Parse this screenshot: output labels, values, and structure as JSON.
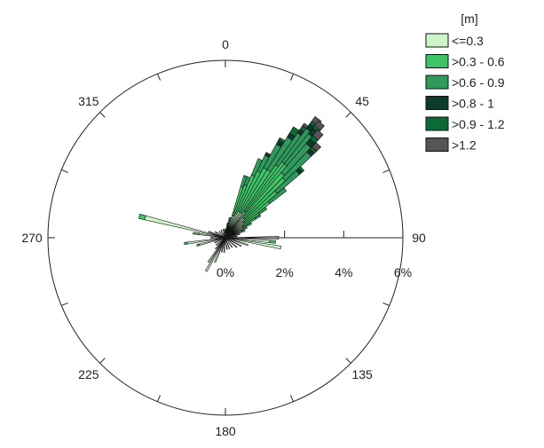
{
  "chart_data": {
    "type": "polar-bar",
    "title": "",
    "direction_labels": [
      "0",
      "45",
      "90",
      "135",
      "180",
      "225",
      "270",
      "315"
    ],
    "radial_tick_labels": [
      "0%",
      "2%",
      "4%",
      "6%"
    ],
    "radial_ticks": [
      0,
      2,
      4,
      6
    ],
    "radial_max": 6,
    "bin_width_deg": 3,
    "legend": {
      "title": "[m]",
      "placement": "top-right",
      "items": [
        {
          "label": "<=0.3",
          "color": "#ccf5c8"
        },
        {
          "label": ">0.3 - 0.6",
          "color": "#3dc466"
        },
        {
          "label": ">0.6 - 0.9",
          "color": "#2f9a5c"
        },
        {
          "label": ">0.8 - 1",
          "color": "#0c3a2c"
        },
        {
          "label": ">0.9 - 1.2",
          "color": "#0b6b36"
        },
        {
          "label": ">1.2",
          "color": "#555555"
        }
      ]
    },
    "series": [
      {
        "dir": 3,
        "values": [
          0.3
        ]
      },
      {
        "dir": 8,
        "values": [
          0.4,
          0.1
        ]
      },
      {
        "dir": 12,
        "values": [
          0.5,
          0.2
        ]
      },
      {
        "dir": 15,
        "values": [
          0.4,
          0.2,
          0.1
        ]
      },
      {
        "dir": 18,
        "values": [
          0.8,
          1.0,
          0.4
        ]
      },
      {
        "dir": 21,
        "values": [
          0.8,
          1.1,
          0.3
        ]
      },
      {
        "dir": 24,
        "values": [
          0.9,
          1.4,
          0.6
        ]
      },
      {
        "dir": 27,
        "values": [
          1.0,
          1.5,
          0.6,
          0.1
        ]
      },
      {
        "dir": 30,
        "values": [
          1.0,
          1.7,
          0.9,
          0.15,
          0.1
        ]
      },
      {
        "dir": 33,
        "values": [
          1.0,
          1.7,
          1.3,
          0.15,
          0.25
        ]
      },
      {
        "dir": 36,
        "values": [
          1.1,
          1.9,
          1.3,
          0.15,
          0.15,
          0.1
        ]
      },
      {
        "dir": 38,
        "values": [
          1.1,
          2.1,
          1.4,
          0.2,
          0.1,
          0.2
        ]
      },
      {
        "dir": 40,
        "values": [
          1.0,
          2.2,
          1.3,
          0.25,
          0.1,
          0.2
        ]
      },
      {
        "dir": 42,
        "values": [
          0.9,
          2.0,
          1.3,
          0.2,
          0.15,
          0.25
        ]
      },
      {
        "dir": 45,
        "values": [
          0.9,
          1.9,
          1.2,
          0.15,
          0.1,
          0.2
        ]
      },
      {
        "dir": 48,
        "values": [
          0.8,
          1.5,
          1.0,
          0.1,
          0.1
        ]
      },
      {
        "dir": 51,
        "values": [
          0.8,
          1.1,
          0.7
        ]
      },
      {
        "dir": 54,
        "values": [
          0.7,
          0.7,
          0.3
        ]
      },
      {
        "dir": 57,
        "values": [
          0.7,
          0.5,
          0.2
        ]
      },
      {
        "dir": 61,
        "values": [
          0.7,
          0.3
        ]
      },
      {
        "dir": 65,
        "values": [
          0.6,
          0.2
        ]
      },
      {
        "dir": 70,
        "values": [
          0.6,
          0.1
        ]
      },
      {
        "dir": 76,
        "values": [
          0.5
        ]
      },
      {
        "dir": 83,
        "values": [
          0.4
        ]
      },
      {
        "dir": 90,
        "values": [
          1.8
        ]
      },
      {
        "dir": 95,
        "values": [
          1.5,
          0.2
        ]
      },
      {
        "dir": 100,
        "values": [
          1.9
        ]
      },
      {
        "dir": 108,
        "values": [
          0.8
        ]
      },
      {
        "dir": 118,
        "values": [
          0.6
        ]
      },
      {
        "dir": 130,
        "values": [
          0.5
        ]
      },
      {
        "dir": 145,
        "values": [
          0.4
        ]
      },
      {
        "dir": 160,
        "values": [
          0.4
        ]
      },
      {
        "dir": 172,
        "values": [
          0.4
        ]
      },
      {
        "dir": 185,
        "values": [
          0.5
        ]
      },
      {
        "dir": 195,
        "values": [
          0.5
        ]
      },
      {
        "dir": 203,
        "values": [
          0.9
        ]
      },
      {
        "dir": 210,
        "values": [
          1.3
        ]
      },
      {
        "dir": 215,
        "values": [
          1.0
        ]
      },
      {
        "dir": 222,
        "values": [
          0.5
        ]
      },
      {
        "dir": 232,
        "values": [
          0.4
        ]
      },
      {
        "dir": 245,
        "values": [
          0.4
        ]
      },
      {
        "dir": 255,
        "values": [
          0.9,
          0.1
        ]
      },
      {
        "dir": 262,
        "values": [
          1.3,
          0.1
        ]
      },
      {
        "dir": 270,
        "values": [
          0.5
        ]
      },
      {
        "dir": 278,
        "values": [
          0.9,
          0.2
        ]
      },
      {
        "dir": 284,
        "values": [
          2.8,
          0.2
        ]
      },
      {
        "dir": 290,
        "values": [
          0.6
        ]
      },
      {
        "dir": 300,
        "values": [
          0.4
        ]
      },
      {
        "dir": 315,
        "values": [
          0.3
        ]
      },
      {
        "dir": 330,
        "values": [
          0.3
        ]
      },
      {
        "dir": 345,
        "values": [
          0.3
        ]
      },
      {
        "dir": 355,
        "values": [
          0.3
        ]
      }
    ]
  }
}
